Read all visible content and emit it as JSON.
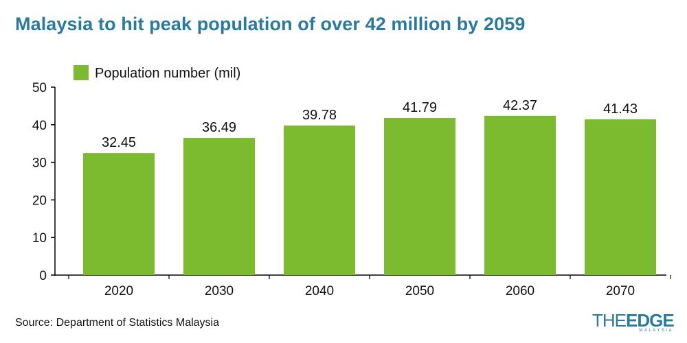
{
  "title": "Malaysia to hit peak population of over 42 million by 2059",
  "source": "Source: Department of Statistics Malaysia",
  "logo": {
    "the": "THE",
    "edge": "EDGE",
    "sub": "MALAYSIA"
  },
  "colors": {
    "bar": "#7cbb2f",
    "title": "#2a7a9e",
    "axis": "#000000"
  },
  "chart_data": {
    "type": "bar",
    "title": "Malaysia to hit peak population of over 42 million by 2059",
    "categories": [
      "2020",
      "2030",
      "2040",
      "2050",
      "2060",
      "2070"
    ],
    "series": [
      {
        "name": "Population number (mil)",
        "values": [
          32.45,
          36.49,
          39.78,
          41.79,
          42.37,
          41.43
        ]
      }
    ],
    "ylim": [
      0,
      50
    ],
    "yticks": [
      0,
      10,
      20,
      30,
      40,
      50
    ],
    "xlabel": "",
    "ylabel": "",
    "grid": false,
    "legend": "top-left",
    "data_labels": [
      "32.45",
      "36.49",
      "39.78",
      "41.79",
      "42.37",
      "41.43"
    ]
  }
}
